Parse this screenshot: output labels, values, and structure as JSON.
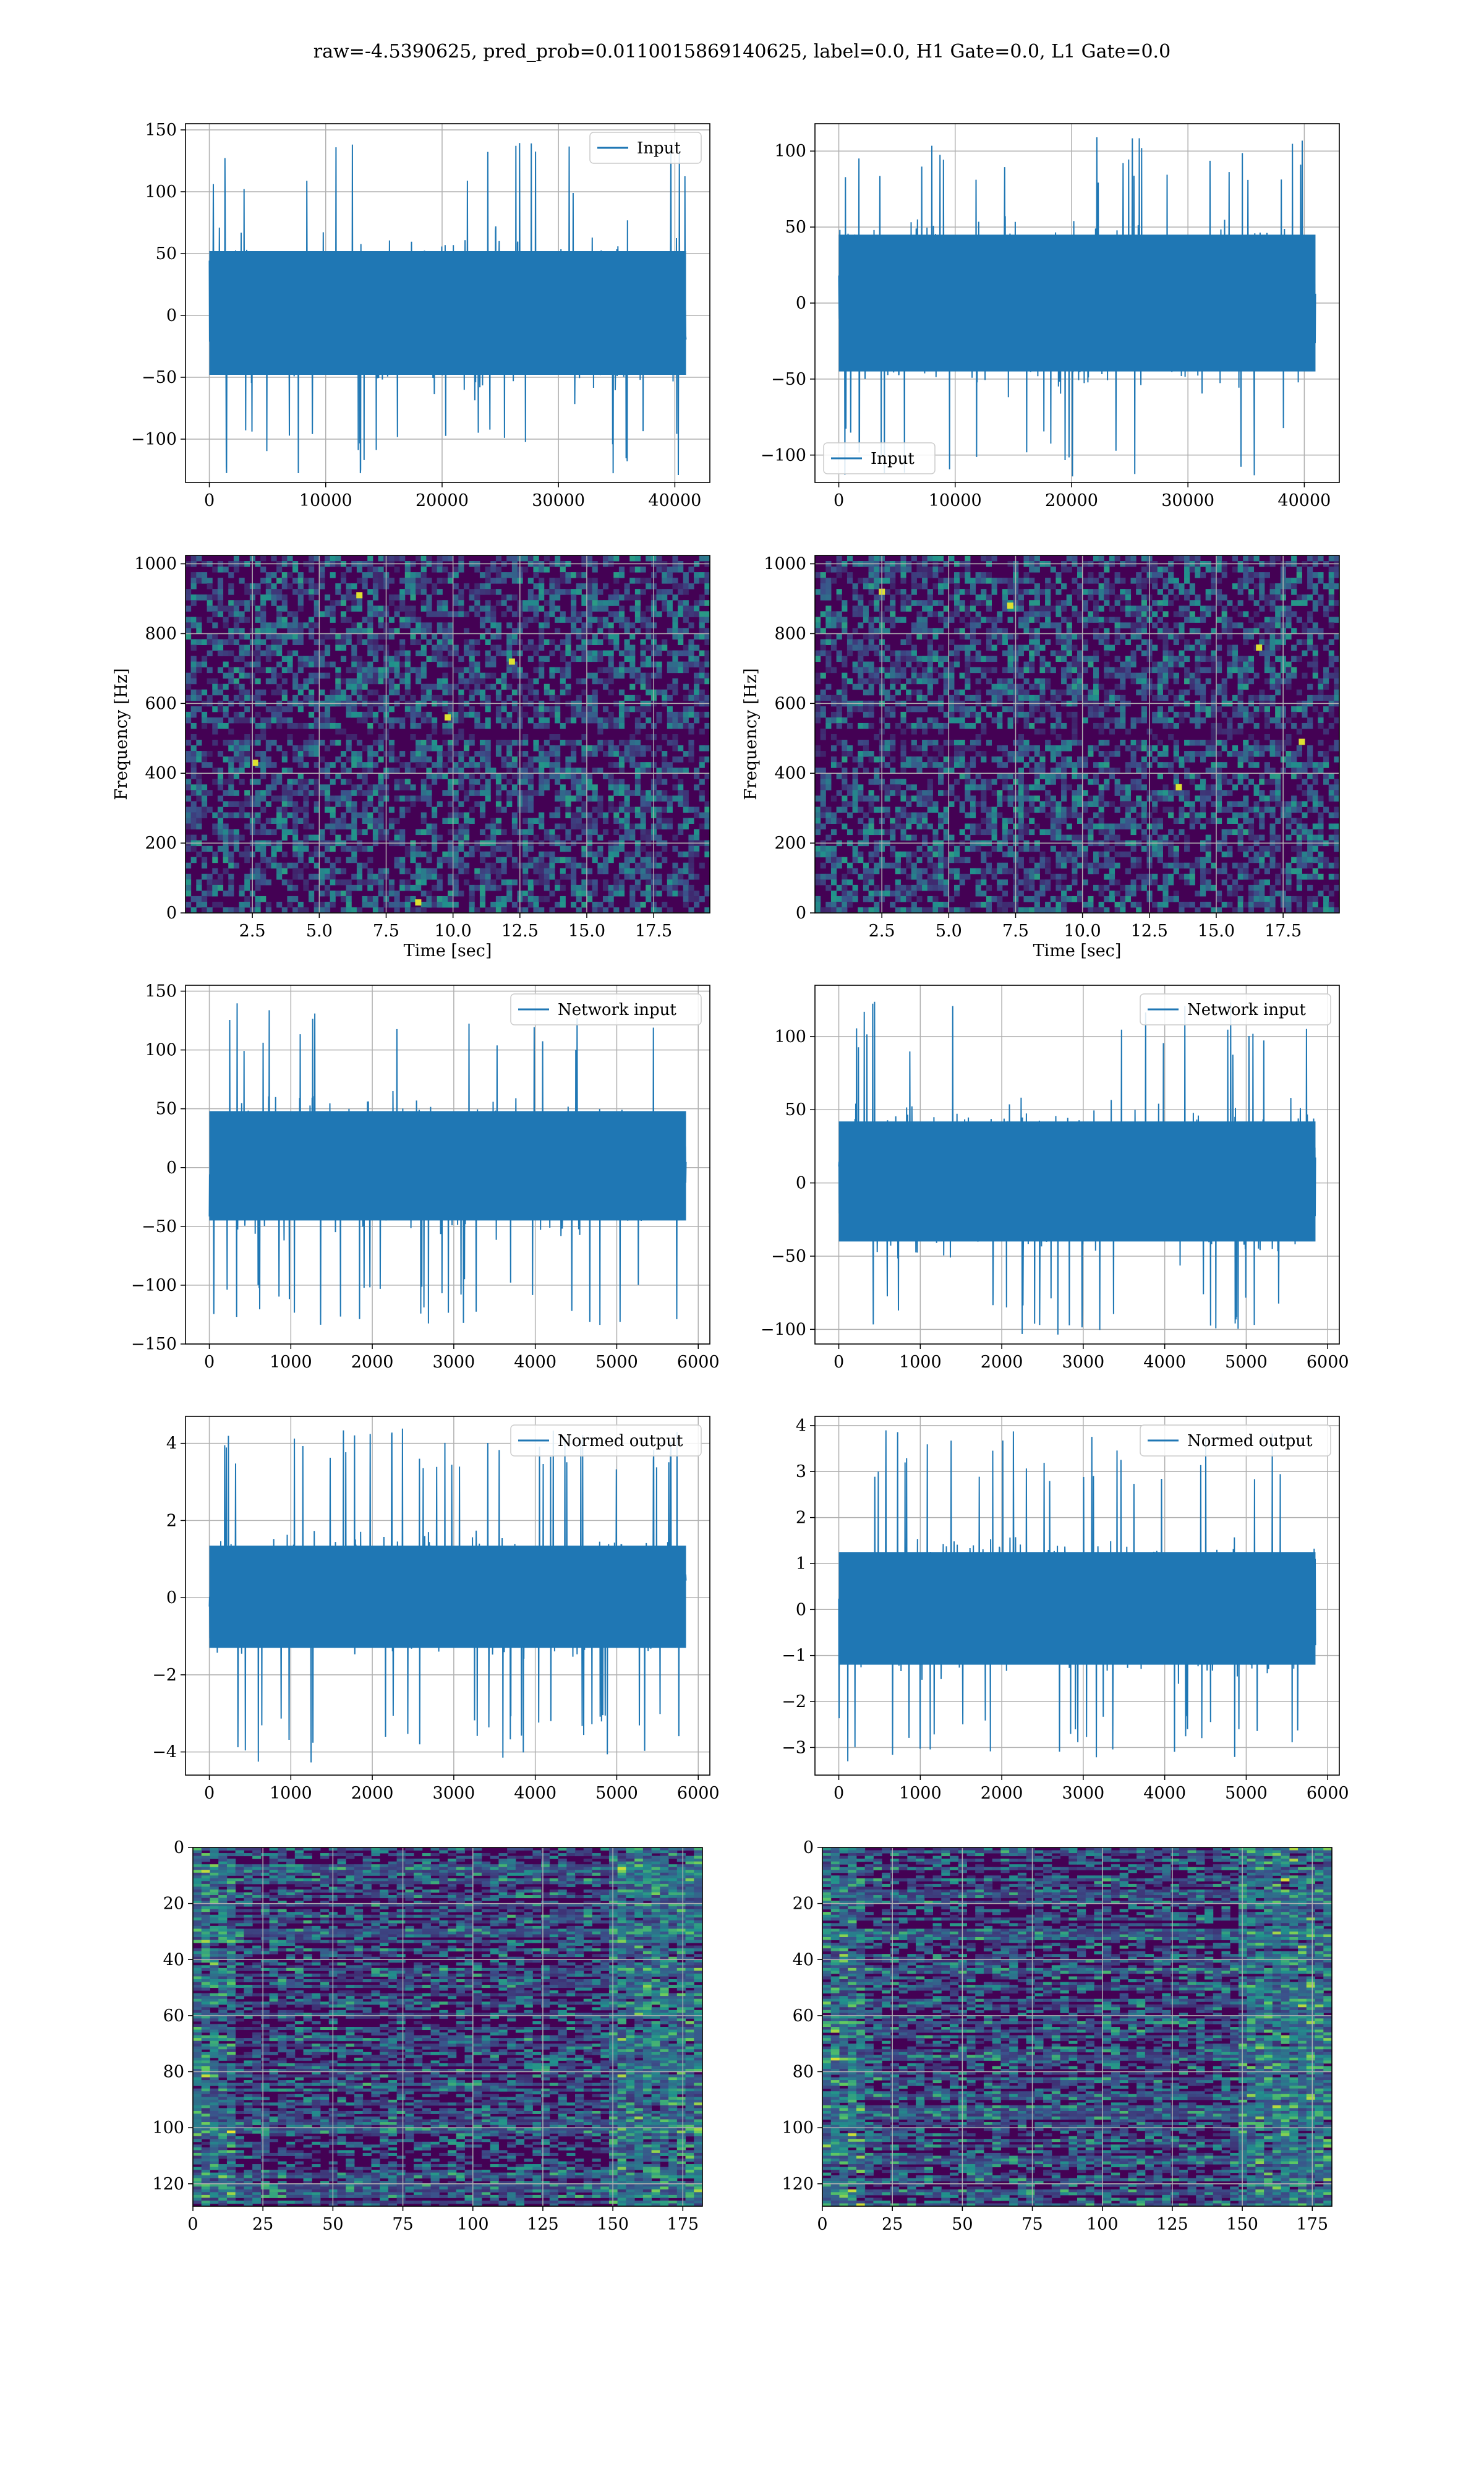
{
  "figure": {
    "title": "raw=-4.5390625, pred_prob=0.0110015869140625, label=0.0, H1 Gate=0.0, L1 Gate=0.0",
    "colors": {
      "line": "#1f77b4",
      "grid": "#b0b0b0",
      "axis": "#000000",
      "viridis_low": "#440154",
      "viridis_mid": "#21918c",
      "viridis_high": "#fde725"
    }
  },
  "chart_data": [
    {
      "id": "h1-input",
      "type": "line",
      "legend": "Input",
      "legend_loc": "upper right",
      "x_range": [
        0,
        40960
      ],
      "ylim": [
        -135,
        155
      ],
      "xticks": [
        0,
        10000,
        20000,
        30000,
        40000
      ],
      "yticks": [
        -100,
        -50,
        0,
        50,
        100,
        150
      ],
      "envelope": {
        "core_low": -48,
        "core_high": 52,
        "spike_min": -130,
        "spike_max": 140
      },
      "grid": true
    },
    {
      "id": "l1-input",
      "type": "line",
      "legend": "Input",
      "legend_loc": "lower left",
      "x_range": [
        0,
        40960
      ],
      "ylim": [
        -118,
        118
      ],
      "xticks": [
        0,
        10000,
        20000,
        30000,
        40000
      ],
      "yticks": [
        -100,
        -50,
        0,
        50,
        100
      ],
      "envelope": {
        "core_low": -45,
        "core_high": 45,
        "spike_min": -115,
        "spike_max": 112
      },
      "grid": true
    },
    {
      "id": "h1-spectrogram",
      "type": "heatmap",
      "colormap": "viridis",
      "xlabel": "Time [sec]",
      "ylabel": "Frequency [Hz]",
      "xlim": [
        0,
        19.6
      ],
      "ylim": [
        0,
        1024
      ],
      "xticks": [
        2.5,
        5.0,
        7.5,
        10.0,
        12.5,
        15.0,
        17.5
      ],
      "yticks": [
        0,
        200,
        400,
        600,
        800,
        1000
      ],
      "hot_spots": [
        [
          8.7,
          30
        ],
        [
          12.2,
          720
        ],
        [
          6.5,
          910
        ],
        [
          9.8,
          560
        ],
        [
          2.6,
          430
        ]
      ],
      "dark_band_hz": [
        500,
        530
      ],
      "grid": true
    },
    {
      "id": "l1-spectrogram",
      "type": "heatmap",
      "colormap": "viridis",
      "xlabel": "Time [sec]",
      "ylabel": "Frequency [Hz]",
      "xlim": [
        0,
        19.6
      ],
      "ylim": [
        0,
        1024
      ],
      "xticks": [
        2.5,
        5.0,
        7.5,
        10.0,
        12.5,
        15.0,
        17.5
      ],
      "yticks": [
        0,
        200,
        400,
        600,
        800,
        1000
      ],
      "hot_spots": [
        [
          7.3,
          880
        ],
        [
          16.6,
          760
        ],
        [
          18.2,
          490
        ],
        [
          13.6,
          360
        ],
        [
          2.5,
          920
        ]
      ],
      "dark_band_hz": [
        500,
        530
      ],
      "grid": true
    },
    {
      "id": "h1-network-input",
      "type": "line",
      "legend": "Network input",
      "legend_loc": "upper right",
      "x_range": [
        0,
        5850
      ],
      "ylim": [
        -150,
        155
      ],
      "xticks": [
        0,
        1000,
        2000,
        3000,
        4000,
        5000,
        6000
      ],
      "yticks": [
        -150,
        -100,
        -50,
        0,
        50,
        100,
        150
      ],
      "envelope": {
        "core_low": -45,
        "core_high": 48,
        "spike_min": -135,
        "spike_max": 140
      },
      "grid": true
    },
    {
      "id": "l1-network-input",
      "type": "line",
      "legend": "Network input",
      "legend_loc": "upper right",
      "x_range": [
        0,
        5850
      ],
      "ylim": [
        -110,
        135
      ],
      "xticks": [
        0,
        1000,
        2000,
        3000,
        4000,
        5000,
        6000
      ],
      "yticks": [
        -100,
        -50,
        0,
        50,
        100
      ],
      "envelope": {
        "core_low": -40,
        "core_high": 42,
        "spike_min": -105,
        "spike_max": 125
      },
      "grid": true
    },
    {
      "id": "h1-normed-output",
      "type": "line",
      "legend": "Normed output",
      "legend_loc": "upper right",
      "x_range": [
        0,
        5850
      ],
      "ylim": [
        -4.6,
        4.7
      ],
      "xticks": [
        0,
        1000,
        2000,
        3000,
        4000,
        5000,
        6000
      ],
      "yticks": [
        -4,
        -2,
        0,
        2,
        4
      ],
      "envelope": {
        "core_low": -1.3,
        "core_high": 1.35,
        "spike_min": -4.3,
        "spike_max": 4.4
      },
      "grid": true
    },
    {
      "id": "l1-normed-output",
      "type": "line",
      "legend": "Normed output",
      "legend_loc": "upper right",
      "x_range": [
        0,
        5850
      ],
      "ylim": [
        -3.6,
        4.2
      ],
      "xticks": [
        0,
        1000,
        2000,
        3000,
        4000,
        5000,
        6000
      ],
      "yticks": [
        -3,
        -2,
        -1,
        0,
        1,
        2,
        3,
        4
      ],
      "envelope": {
        "core_low": -1.2,
        "core_high": 1.25,
        "spike_min": -3.3,
        "spike_max": 3.9
      },
      "grid": true
    },
    {
      "id": "h1-feature-map",
      "type": "heatmap",
      "colormap": "viridis",
      "xlim": [
        0,
        182
      ],
      "ylim": [
        128,
        0
      ],
      "xticks": [
        0,
        25,
        50,
        75,
        100,
        125,
        150,
        175
      ],
      "yticks": [
        0,
        20,
        40,
        60,
        80,
        100,
        120
      ],
      "grid": true
    },
    {
      "id": "l1-feature-map",
      "type": "heatmap",
      "colormap": "viridis",
      "xlim": [
        0,
        182
      ],
      "ylim": [
        128,
        0
      ],
      "xticks": [
        0,
        25,
        50,
        75,
        100,
        125,
        150,
        175
      ],
      "yticks": [
        0,
        20,
        40,
        60,
        80,
        100,
        120
      ],
      "grid": true
    }
  ]
}
